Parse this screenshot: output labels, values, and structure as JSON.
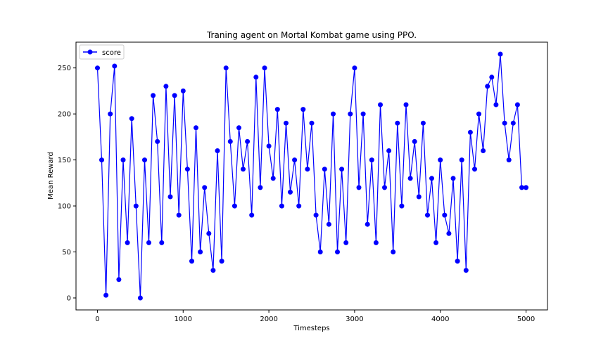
{
  "chart_data": {
    "type": "line",
    "title": "Traning agent on Mortal Kombat game using PPO.",
    "xlabel": "Timesteps",
    "ylabel": "Mean Reward",
    "xlim": [
      -250,
      5250
    ],
    "ylim": [
      -13,
      278
    ],
    "xticks": [
      0,
      1000,
      2000,
      3000,
      4000,
      5000
    ],
    "yticks": [
      0,
      50,
      100,
      150,
      200,
      250
    ],
    "grid": false,
    "legend": "upper-left",
    "series": [
      {
        "name": "score",
        "color": "#0000ff",
        "marker": "circle",
        "x": [
          0,
          50,
          100,
          150,
          200,
          250,
          300,
          350,
          400,
          450,
          500,
          550,
          600,
          650,
          700,
          750,
          800,
          850,
          900,
          950,
          1000,
          1050,
          1100,
          1150,
          1200,
          1250,
          1300,
          1350,
          1400,
          1450,
          1500,
          1550,
          1600,
          1650,
          1700,
          1750,
          1800,
          1850,
          1900,
          1950,
          2000,
          2050,
          2100,
          2150,
          2200,
          2250,
          2300,
          2350,
          2400,
          2450,
          2500,
          2550,
          2600,
          2650,
          2700,
          2750,
          2800,
          2850,
          2900,
          2950,
          3000,
          3050,
          3100,
          3150,
          3200,
          3250,
          3300,
          3350,
          3400,
          3450,
          3500,
          3550,
          3600,
          3650,
          3700,
          3750,
          3800,
          3850,
          3900,
          3950,
          4000,
          4050,
          4100,
          4150,
          4200,
          4250,
          4300,
          4350,
          4400,
          4450,
          4500,
          4550,
          4600,
          4650,
          4700,
          4750,
          4800,
          4850,
          4900,
          4950,
          5000
        ],
        "values": [
          250,
          150,
          3,
          200,
          252,
          20,
          150,
          60,
          195,
          100,
          0,
          150,
          60,
          220,
          170,
          60,
          230,
          110,
          220,
          90,
          225,
          140,
          40,
          185,
          50,
          120,
          70,
          30,
          160,
          40,
          250,
          170,
          100,
          185,
          140,
          170,
          90,
          240,
          120,
          250,
          165,
          130,
          205,
          100,
          190,
          115,
          150,
          100,
          205,
          140,
          190,
          90,
          50,
          140,
          80,
          200,
          50,
          140,
          60,
          200,
          250,
          120,
          200,
          80,
          150,
          60,
          210,
          120,
          160,
          50,
          190,
          100,
          210,
          130,
          170,
          110,
          190,
          90,
          130,
          60,
          150,
          90,
          70,
          130,
          40,
          150,
          30,
          180,
          140,
          200,
          160,
          230,
          240,
          210,
          265,
          190,
          150,
          190,
          210,
          120,
          120
        ]
      }
    ]
  }
}
